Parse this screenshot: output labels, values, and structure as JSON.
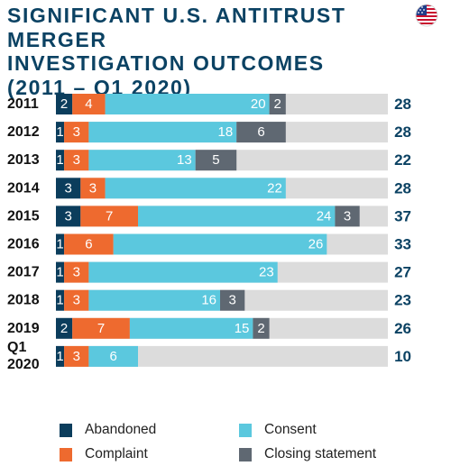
{
  "title_lines": [
    "SIGNIFICANT U.S. ANTITRUST MERGER",
    "INVESTIGATION OUTCOMES",
    "(2011 – Q1 2020)"
  ],
  "flag_icon": "us-flag-icon",
  "colors": {
    "abandoned": "#0b3d5c",
    "complaint": "#ee6a2f",
    "consent": "#5bc8de",
    "closing": "#5f6872",
    "track": "#dcdcdc",
    "total_text": "#0b4263"
  },
  "legend": [
    {
      "key": "abandoned",
      "label": "Abandoned"
    },
    {
      "key": "consent",
      "label": "Consent"
    },
    {
      "key": "complaint",
      "label": "Complaint"
    },
    {
      "key": "closing",
      "label": "Closing statement"
    }
  ],
  "chart_data": {
    "type": "bar",
    "orientation": "horizontal",
    "stacked": true,
    "title": "SIGNIFICANT U.S. ANTITRUST MERGER INVESTIGATION OUTCOMES (2011 – Q1 2020)",
    "categories": [
      "2011",
      "2012",
      "2013",
      "2014",
      "2015",
      "2016",
      "2017",
      "2018",
      "2019",
      "Q1 2020"
    ],
    "series": [
      {
        "name": "Abandoned",
        "key": "abandoned",
        "values": [
          2,
          1,
          1,
          3,
          3,
          1,
          1,
          1,
          2,
          1
        ]
      },
      {
        "name": "Complaint",
        "key": "complaint",
        "values": [
          4,
          3,
          3,
          3,
          7,
          6,
          3,
          3,
          7,
          3
        ]
      },
      {
        "name": "Consent",
        "key": "consent",
        "values": [
          20,
          18,
          13,
          22,
          24,
          26,
          23,
          16,
          15,
          6
        ]
      },
      {
        "name": "Closing statement",
        "key": "closing",
        "values": [
          2,
          6,
          5,
          0,
          3,
          0,
          0,
          3,
          2,
          0
        ]
      }
    ],
    "totals": [
      28,
      28,
      22,
      28,
      37,
      33,
      27,
      23,
      26,
      10
    ],
    "xlim": [
      0,
      37
    ],
    "legend_position": "bottom",
    "grid": false
  }
}
